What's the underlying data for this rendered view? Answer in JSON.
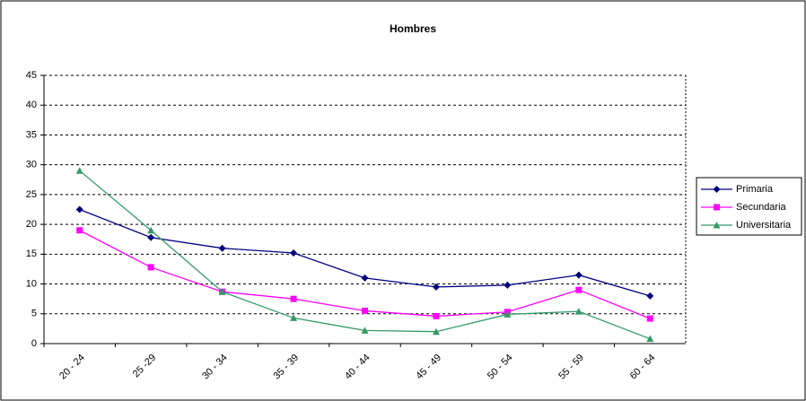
{
  "chart_data": {
    "type": "line",
    "title": "Hombres",
    "categories": [
      "20 - 24",
      "25 -29",
      "30 - 34",
      "35 - 39",
      "40 - 44",
      "45 - 49",
      "50 - 54",
      "55 - 59",
      "60 - 64"
    ],
    "series": [
      {
        "name": "Primaria",
        "color": "#000080",
        "marker": "diamond",
        "values": [
          22.5,
          17.8,
          16,
          15.2,
          11,
          9.5,
          9.8,
          11.5,
          8
        ]
      },
      {
        "name": "Secundaria",
        "color": "#ff00ff",
        "marker": "square",
        "values": [
          19,
          12.8,
          8.7,
          7.5,
          5.5,
          4.6,
          5.3,
          9,
          4.2
        ]
      },
      {
        "name": "Universitaria",
        "color": "#339966",
        "marker": "triangle",
        "values": [
          29,
          19,
          8.7,
          4.3,
          2.2,
          2,
          4.9,
          5.4,
          0.8
        ]
      }
    ],
    "ylim": [
      0,
      45
    ],
    "yticks": [
      0,
      5,
      10,
      15,
      20,
      25,
      30,
      35,
      40,
      45
    ],
    "grid": true,
    "legend": "right"
  }
}
